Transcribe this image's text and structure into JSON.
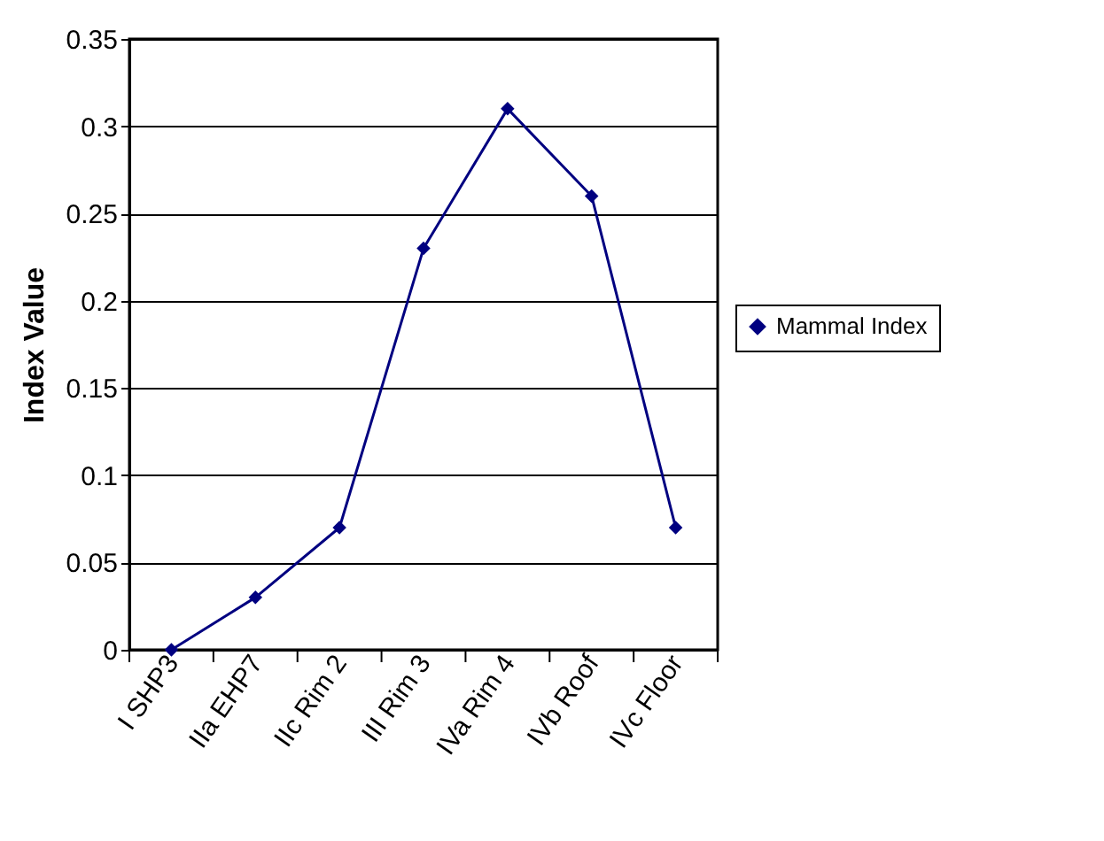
{
  "chart_data": {
    "type": "line",
    "ylabel": "Index Value",
    "categories": [
      "I SHP3",
      "IIa EHP7",
      "IIc Rim 2",
      "III Rim 3",
      "IVa Rim 4",
      "IVb Roof",
      "IVc Floor"
    ],
    "series": [
      {
        "name": "Mammal Index",
        "color": "#000080",
        "values": [
          0,
          0.03,
          0.07,
          0.23,
          0.31,
          0.26,
          0.07
        ]
      }
    ],
    "ylim": [
      0,
      0.35
    ],
    "yticks": [
      0,
      0.05,
      0.1,
      0.15,
      0.2,
      0.25,
      0.3,
      0.35
    ],
    "grid": "y",
    "legend": "right",
    "marker": "diamond",
    "line_style": "solid"
  }
}
